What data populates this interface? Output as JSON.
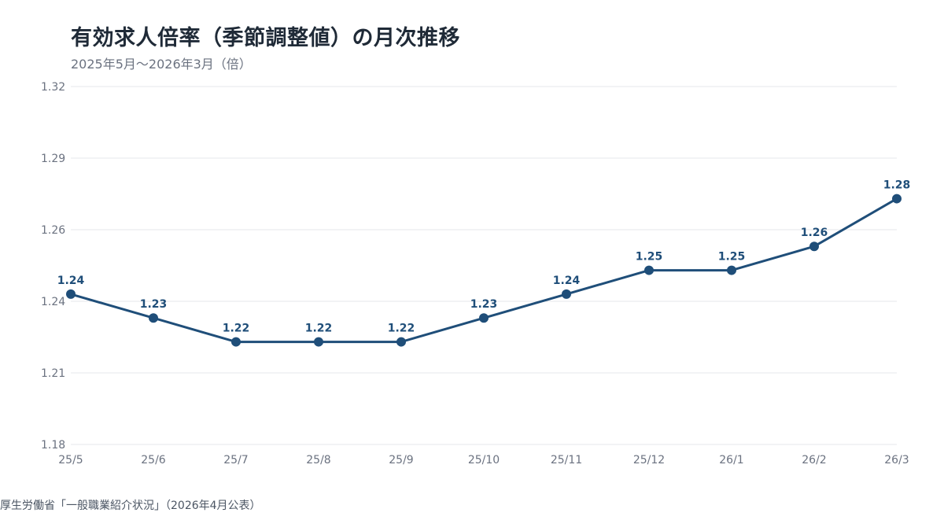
{
  "chart_data": {
    "type": "line",
    "title": "有効求人倍率（季節調整値）の月次推移",
    "subtitle": "2025年5月〜2026年3月（倍）",
    "source": "厚生労働省「一般職業紹介状況」（2026年4月公表）",
    "categories": [
      "25/5",
      "25/6",
      "25/7",
      "25/8",
      "25/9",
      "25/10",
      "25/11",
      "25/12",
      "26/1",
      "26/2",
      "26/3"
    ],
    "series": [
      {
        "values": [
          1.243,
          1.233,
          1.223,
          1.223,
          1.223,
          1.233,
          1.243,
          1.253,
          1.253,
          1.263,
          1.283
        ],
        "labels": [
          "1.24",
          "1.23",
          "1.22",
          "1.22",
          "1.22",
          "1.23",
          "1.24",
          "1.25",
          "1.25",
          "1.26",
          "1.28"
        ]
      }
    ],
    "ylim": [
      1.18,
      1.33
    ],
    "yticks": [
      1.18,
      1.21,
      1.24,
      1.26,
      1.29,
      1.32
    ],
    "ytick_labels": [
      "1.18",
      "1.21",
      "1.24",
      "1.26",
      "1.29",
      "1.32"
    ],
    "grid": true,
    "legend": false,
    "colors": {
      "line": "#1f4e79",
      "grid": "#e5e7eb",
      "axis_text": "#6b7280"
    }
  }
}
